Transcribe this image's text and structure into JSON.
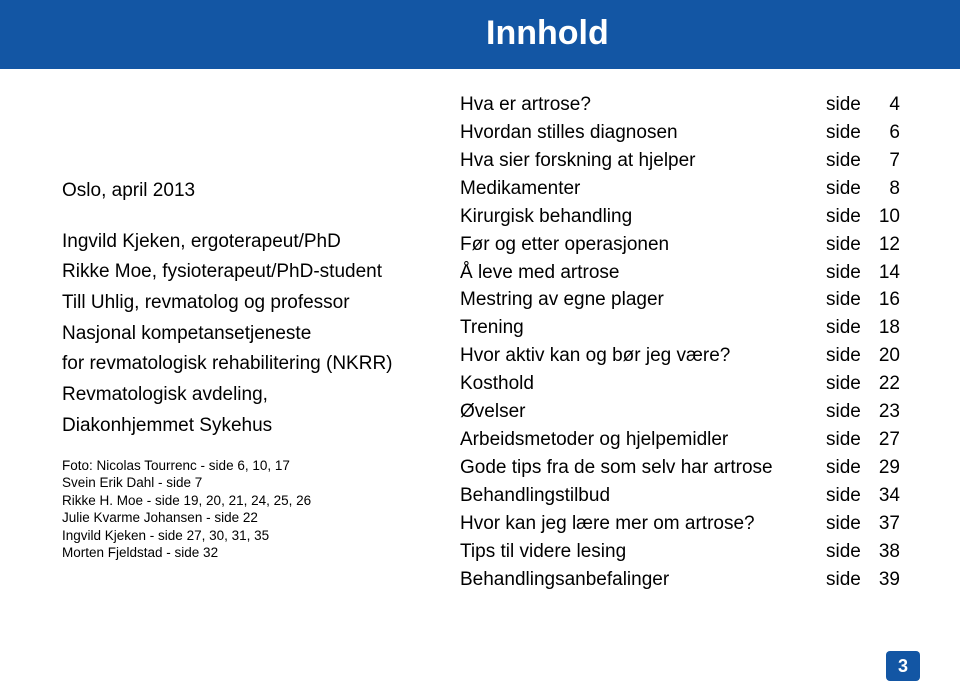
{
  "banner_title": "Innhold",
  "left_block": {
    "date_line": "Oslo, april 2013",
    "authors": [
      "Ingvild Kjeken, ergoterapeut/PhD",
      "Rikke Moe, fysioterapeut/PhD-student",
      "Till Uhlig, revmatolog og professor",
      "Nasjonal kompetansetjeneste",
      "for revmatologisk rehabilitering (NKRR)",
      "Revmatologisk avdeling,",
      "Diakonhjemmet Sykehus"
    ],
    "photos": [
      "Foto: Nicolas Tourrenc - side 6, 10, 17",
      "Svein Erik Dahl - side 7",
      "Rikke H. Moe - side 19, 20, 21, 24, 25, 26",
      "Julie Kvarme Johansen - side 22",
      "Ingvild Kjeken - side 27, 30, 31, 35",
      "Morten Fjeldstad - side 32"
    ]
  },
  "toc": [
    {
      "title": "Hva er artrose?",
      "page": "4"
    },
    {
      "title": "Hvordan stilles diagnosen",
      "page": "6"
    },
    {
      "title": "Hva sier forskning at hjelper",
      "page": "7"
    },
    {
      "title": "Medikamenter",
      "page": "8"
    },
    {
      "title": "Kirurgisk behandling",
      "page": "10"
    },
    {
      "title": "Før og etter operasjonen",
      "page": "12"
    },
    {
      "title": "Å leve med artrose",
      "page": "14"
    },
    {
      "title": "Mestring av egne plager",
      "page": "16"
    },
    {
      "title": "Trening",
      "page": "18"
    },
    {
      "title": "Hvor aktiv kan og bør jeg være?",
      "page": "20"
    },
    {
      "title": "Kosthold",
      "page": "22"
    },
    {
      "title": "Øvelser",
      "page": "23"
    },
    {
      "title": "Arbeidsmetoder og hjelpemidler",
      "page": "27"
    },
    {
      "title": "Gode tips fra de som selv har artrose",
      "page": "29"
    },
    {
      "title": "Behandlingstilbud",
      "page": "34"
    },
    {
      "title": "Hvor kan jeg lære mer om artrose?",
      "page": "37"
    },
    {
      "title": "Tips til videre lesing",
      "page": "38"
    },
    {
      "title": "Behandlingsanbefalinger",
      "page": "39"
    }
  ],
  "side_label": "side",
  "page_number": "3",
  "colors": {
    "banner_bg": "#1356a4",
    "banner_fg": "#ffffff",
    "text": "#000000"
  }
}
